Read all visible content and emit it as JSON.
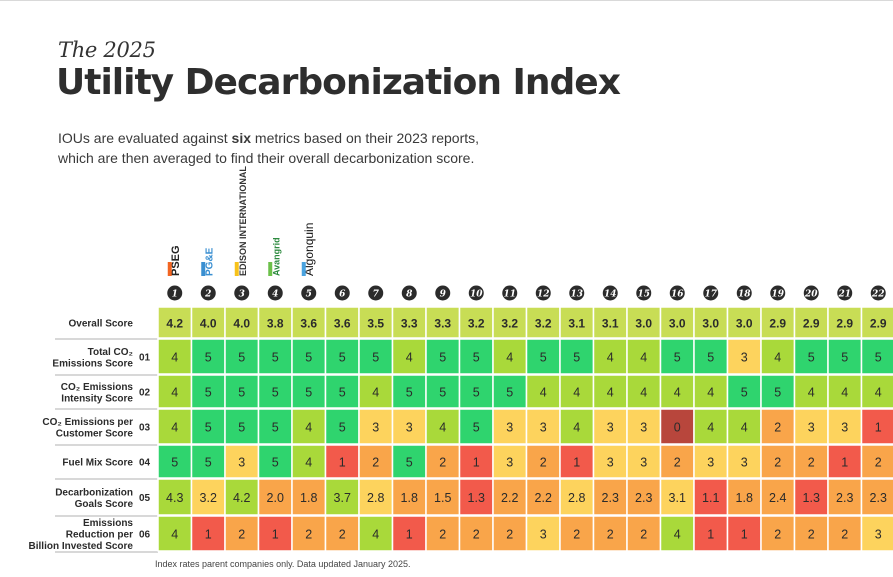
{
  "header": {
    "kicker": "The 2025",
    "title": "Utility Decarbonization Index",
    "description_pre": "IOUs are evaluated against ",
    "description_bold": "six",
    "description_post": " metrics based on their 2023 reports, which are then averaged to find their overall decarbonization score."
  },
  "logos": [
    "PSEG",
    "PG&E",
    "EDISON INTERNATIONAL",
    "Avangrid",
    "Algonquin"
  ],
  "footnote": "Index rates parent companies only. Data updated January 2025.",
  "colors": {
    "0": "#b8463c",
    "1": "#f25a4b",
    "2": "#f9a54a",
    "3": "#fdd35d",
    "4": "#a9d93a",
    "5": "#2fd46e",
    "overall": "#c8dd55",
    "ranks_bg": "#2b2b2b"
  },
  "chart_data": {
    "type": "heatmap",
    "columns": [
      "1",
      "2",
      "3",
      "4",
      "5",
      "6",
      "7",
      "8",
      "9",
      "10",
      "11",
      "12",
      "13",
      "14",
      "15",
      "16",
      "17",
      "18",
      "19",
      "20",
      "21",
      "22"
    ],
    "rows": [
      {
        "name": "Overall Score",
        "num": "",
        "values": [
          "4.2",
          "4.0",
          "4.0",
          "3.8",
          "3.6",
          "3.6",
          "3.5",
          "3.3",
          "3.3",
          "3.2",
          "3.2",
          "3.2",
          "3.1",
          "3.1",
          "3.0",
          "3.0",
          "3.0",
          "3.0",
          "2.9",
          "2.9",
          "2.9",
          "2.9"
        ]
      },
      {
        "name": "Total CO2 Emissions Score",
        "label_lines": [
          "Total CO₂",
          "Emissions Score"
        ],
        "num": "01",
        "values": [
          "4",
          "5",
          "5",
          "5",
          "5",
          "5",
          "5",
          "4",
          "5",
          "5",
          "4",
          "5",
          "5",
          "4",
          "4",
          "5",
          "5",
          "3",
          "4",
          "5",
          "5",
          "5"
        ]
      },
      {
        "name": "CO2 Emissions Intensity Score",
        "label_lines": [
          "CO₂ Emissions",
          "Intensity Score"
        ],
        "num": "02",
        "values": [
          "4",
          "5",
          "5",
          "5",
          "5",
          "5",
          "4",
          "5",
          "5",
          "5",
          "5",
          "4",
          "4",
          "4",
          "4",
          "4",
          "4",
          "5",
          "5",
          "4",
          "4",
          "4"
        ]
      },
      {
        "name": "CO2 Emissions per Customer Score",
        "label_lines": [
          "CO₂ Emissions per",
          "Customer Score"
        ],
        "num": "03",
        "values": [
          "4",
          "5",
          "5",
          "5",
          "4",
          "5",
          "3",
          "3",
          "4",
          "5",
          "3",
          "3",
          "4",
          "3",
          "3",
          "0",
          "4",
          "4",
          "2",
          "3",
          "3",
          "1"
        ]
      },
      {
        "name": "Fuel Mix Score",
        "label_lines": [
          "Fuel Mix Score"
        ],
        "num": "04",
        "values": [
          "5",
          "5",
          "3",
          "5",
          "4",
          "1",
          "2",
          "5",
          "2",
          "1",
          "3",
          "2",
          "1",
          "3",
          "3",
          "2",
          "3",
          "3",
          "2",
          "2",
          "1",
          "2"
        ]
      },
      {
        "name": "Decarbonization Goals Score",
        "label_lines": [
          "Decarbonization",
          "Goals Score"
        ],
        "num": "05",
        "values": [
          "4.3",
          "3.2",
          "4.2",
          "2.0",
          "1.8",
          "3.7",
          "2.8",
          "1.8",
          "1.5",
          "1.3",
          "2.2",
          "2.2",
          "2.8",
          "2.3",
          "2.3",
          "3.1",
          "1.1",
          "1.8",
          "2.4",
          "1.3",
          "2.3",
          "2.3"
        ]
      },
      {
        "name": "Emissions Reduction per Billion Invested Score",
        "label_lines": [
          "Emissions",
          "Reduction per",
          "Billion Invested Score"
        ],
        "num": "06",
        "values": [
          "4",
          "1",
          "2",
          "1",
          "2",
          "2",
          "4",
          "1",
          "2",
          "2",
          "2",
          "3",
          "2",
          "2",
          "2",
          "4",
          "1",
          "1",
          "2",
          "2",
          "2",
          "3"
        ]
      }
    ]
  }
}
